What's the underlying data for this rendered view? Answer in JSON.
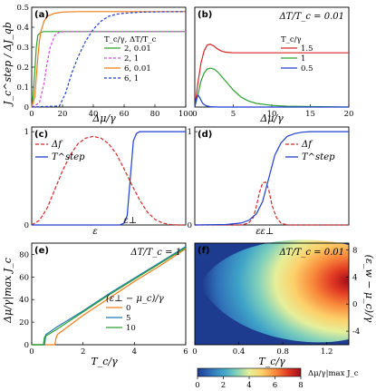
{
  "figure": {
    "y_label_ab": "J_c^step / ΔJ_qb",
    "x_label_ab": "Δμ/γ",
    "y_label_e": "Δμ/γ|max J_c",
    "x_label_ef": "T_c/γ",
    "y_label_f": "(ε_w − μ_c)/γ",
    "colorbar_label": "Δμ/γ|max J_c"
  },
  "chart_data": [
    {
      "panel": "(a)",
      "type": "line",
      "legend_title": "T_c/γ, ΔT/T_c",
      "xlim": [
        0,
        100
      ],
      "ylim": [
        0,
        0.5
      ],
      "xticks": [
        0,
        20,
        40,
        60,
        80,
        100
      ],
      "yticks": [
        0,
        0.1,
        0.2,
        0.3,
        0.4,
        0.5
      ],
      "series": [
        {
          "name": "2, 0.01",
          "color": "#2ca02c",
          "dash": "",
          "x": [
            0,
            1,
            2,
            3,
            4,
            6,
            8,
            100
          ],
          "y": [
            0,
            0.06,
            0.18,
            0.3,
            0.36,
            0.375,
            0.378,
            0.378
          ]
        },
        {
          "name": "2, 1",
          "color": "#d84ae0",
          "dash": "3,2",
          "x": [
            0,
            5,
            8,
            10,
            12,
            15,
            18,
            22,
            26,
            100
          ],
          "y": [
            0,
            0.02,
            0.12,
            0.22,
            0.3,
            0.36,
            0.375,
            0.378,
            0.378,
            0.378
          ]
        },
        {
          "name": "6, 0.01",
          "color": "#f07d1a",
          "dash": "",
          "x": [
            0,
            2,
            3,
            4,
            5,
            6,
            8,
            10,
            15,
            20,
            30,
            100
          ],
          "y": [
            0,
            0.05,
            0.15,
            0.25,
            0.33,
            0.38,
            0.43,
            0.455,
            0.47,
            0.476,
            0.478,
            0.478
          ]
        },
        {
          "name": "6, 1",
          "color": "#1f3fd0",
          "dash": "3,2",
          "x": [
            0,
            18,
            22,
            26,
            30,
            35,
            40,
            45,
            50,
            55,
            60,
            70,
            80,
            100
          ],
          "y": [
            0,
            0.005,
            0.07,
            0.17,
            0.25,
            0.33,
            0.39,
            0.43,
            0.455,
            0.465,
            0.47,
            0.475,
            0.477,
            0.478
          ]
        }
      ]
    },
    {
      "panel": "(b)",
      "type": "line",
      "annotation": "ΔT/T_c = 0.01",
      "legend_title": "T_c/γ",
      "xlim": [
        0,
        20
      ],
      "ylim": [
        0,
        0.5
      ],
      "xticks": [
        0,
        5,
        10,
        15,
        20
      ],
      "series": [
        {
          "name": "1.5",
          "color": "#d62728",
          "dash": "",
          "x": [
            0,
            0.4,
            0.8,
            1.2,
            1.6,
            2,
            2.5,
            3,
            3.5,
            4,
            5,
            6,
            8,
            20
          ],
          "y": [
            0,
            0.12,
            0.22,
            0.28,
            0.31,
            0.315,
            0.305,
            0.29,
            0.28,
            0.275,
            0.272,
            0.272,
            0.272,
            0.272
          ]
        },
        {
          "name": "1",
          "color": "#2ca02c",
          "dash": "",
          "x": [
            0,
            0.4,
            0.8,
            1.2,
            1.6,
            2,
            2.5,
            3,
            4,
            5,
            6,
            7,
            8,
            10,
            12,
            20
          ],
          "y": [
            0,
            0.06,
            0.13,
            0.17,
            0.19,
            0.195,
            0.19,
            0.175,
            0.13,
            0.085,
            0.05,
            0.03,
            0.018,
            0.008,
            0.004,
            0
          ]
        },
        {
          "name": "0.5",
          "color": "#1f3fd0",
          "dash": "",
          "x": [
            0,
            0.2,
            0.4,
            0.6,
            0.8,
            1,
            1.3,
            1.6,
            2,
            3,
            20
          ],
          "y": [
            0,
            0.04,
            0.06,
            0.05,
            0.035,
            0.02,
            0.01,
            0.005,
            0.002,
            0,
            0
          ]
        }
      ]
    },
    {
      "panel": "(c)",
      "type": "line",
      "xlabel": "ε",
      "xmark": "ε⊥",
      "yticks": [
        0,
        1
      ],
      "series": [
        {
          "name": "Δf",
          "color": "#d62728",
          "dash": "4,2",
          "x": [
            0,
            0.05,
            0.1,
            0.15,
            0.2,
            0.25,
            0.3,
            0.35,
            0.4,
            0.45,
            0.5,
            0.55,
            0.6,
            0.65,
            0.7,
            0.75,
            0.8,
            0.85,
            0.9,
            0.95,
            1
          ],
          "y": [
            0,
            0.05,
            0.18,
            0.38,
            0.58,
            0.75,
            0.87,
            0.93,
            0.95,
            0.93,
            0.87,
            0.76,
            0.6,
            0.43,
            0.27,
            0.14,
            0.06,
            0.02,
            0.005,
            0,
            0
          ]
        },
        {
          "name": "T^step",
          "color": "#1f3fd0",
          "dash": "",
          "x": [
            0,
            0.57,
            0.6,
            0.62,
            0.64,
            0.66,
            0.68,
            0.7,
            1
          ],
          "y": [
            0,
            0,
            0.02,
            0.1,
            0.5,
            0.9,
            0.98,
            1,
            1
          ]
        }
      ]
    },
    {
      "panel": "(d)",
      "type": "line",
      "xlabel": "ε",
      "xmark": "ε⊥",
      "yticks": [
        0,
        1
      ],
      "series": [
        {
          "name": "Δf",
          "color": "#d62728",
          "dash": "4,2",
          "x": [
            0,
            0.3,
            0.35,
            0.38,
            0.4,
            0.42,
            0.44,
            0.46,
            0.48,
            0.5,
            0.53,
            0.56,
            0.6,
            1
          ],
          "y": [
            0,
            0,
            0.02,
            0.08,
            0.2,
            0.35,
            0.45,
            0.46,
            0.38,
            0.22,
            0.08,
            0.02,
            0,
            0
          ]
        },
        {
          "name": "T^step",
          "color": "#1f3fd0",
          "dash": "",
          "x": [
            0,
            0.2,
            0.3,
            0.35,
            0.4,
            0.44,
            0.48,
            0.52,
            0.56,
            0.6,
            0.65,
            0.7,
            0.75,
            1
          ],
          "y": [
            0,
            0.005,
            0.02,
            0.05,
            0.12,
            0.25,
            0.5,
            0.75,
            0.88,
            0.95,
            0.98,
            0.995,
            1,
            1
          ]
        }
      ]
    },
    {
      "panel": "(e)",
      "type": "line",
      "annotation": "ΔT/T_c = 1",
      "legend_title": "(ε⊥ − μ_c)/γ",
      "xlim": [
        0,
        6
      ],
      "ylim": [
        0,
        90
      ],
      "xticks": [
        0,
        2,
        4,
        6
      ],
      "yticks": [
        0,
        20,
        40,
        60,
        80
      ],
      "series": [
        {
          "name": "0",
          "color": "#f07d1a",
          "dash": "",
          "x": [
            0,
            0.9,
            0.95,
            1,
            2,
            3,
            4,
            5,
            6
          ],
          "y": [
            0,
            0,
            6,
            9,
            26,
            41,
            56,
            70,
            85
          ]
        },
        {
          "name": "5",
          "color": "#1f77b4",
          "dash": "",
          "x": [
            0,
            0.5,
            0.55,
            1,
            2,
            3,
            4,
            5,
            6
          ],
          "y": [
            0,
            0,
            9,
            16,
            30,
            45,
            59,
            73,
            87
          ]
        },
        {
          "name": "10",
          "color": "#2ca02c",
          "dash": "",
          "x": [
            0,
            0.45,
            0.5,
            1,
            2,
            3,
            4,
            5,
            6
          ],
          "y": [
            0,
            0,
            7,
            14,
            29,
            44,
            58,
            72,
            86
          ]
        }
      ]
    },
    {
      "panel": "(f)",
      "type": "heatmap",
      "annotation": "ΔT/T_c = 0.01",
      "xlim": [
        0,
        1.4
      ],
      "ylim": [
        -6,
        9
      ],
      "xticks": [
        0,
        0.4,
        0.8,
        1.2
      ],
      "yticks": [
        -4,
        0,
        4,
        8
      ],
      "colorbar_ticks": [
        0,
        2,
        4,
        6,
        8
      ],
      "colormap": [
        "#1d3b8f",
        "#2f6fb8",
        "#3fa3c8",
        "#7fd0bb",
        "#e6ef9a",
        "#fcd06a",
        "#f98b3c",
        "#e23b23",
        "#a30b1a"
      ],
      "peak_center": {
        "x": 1.4,
        "y": 3
      }
    }
  ]
}
